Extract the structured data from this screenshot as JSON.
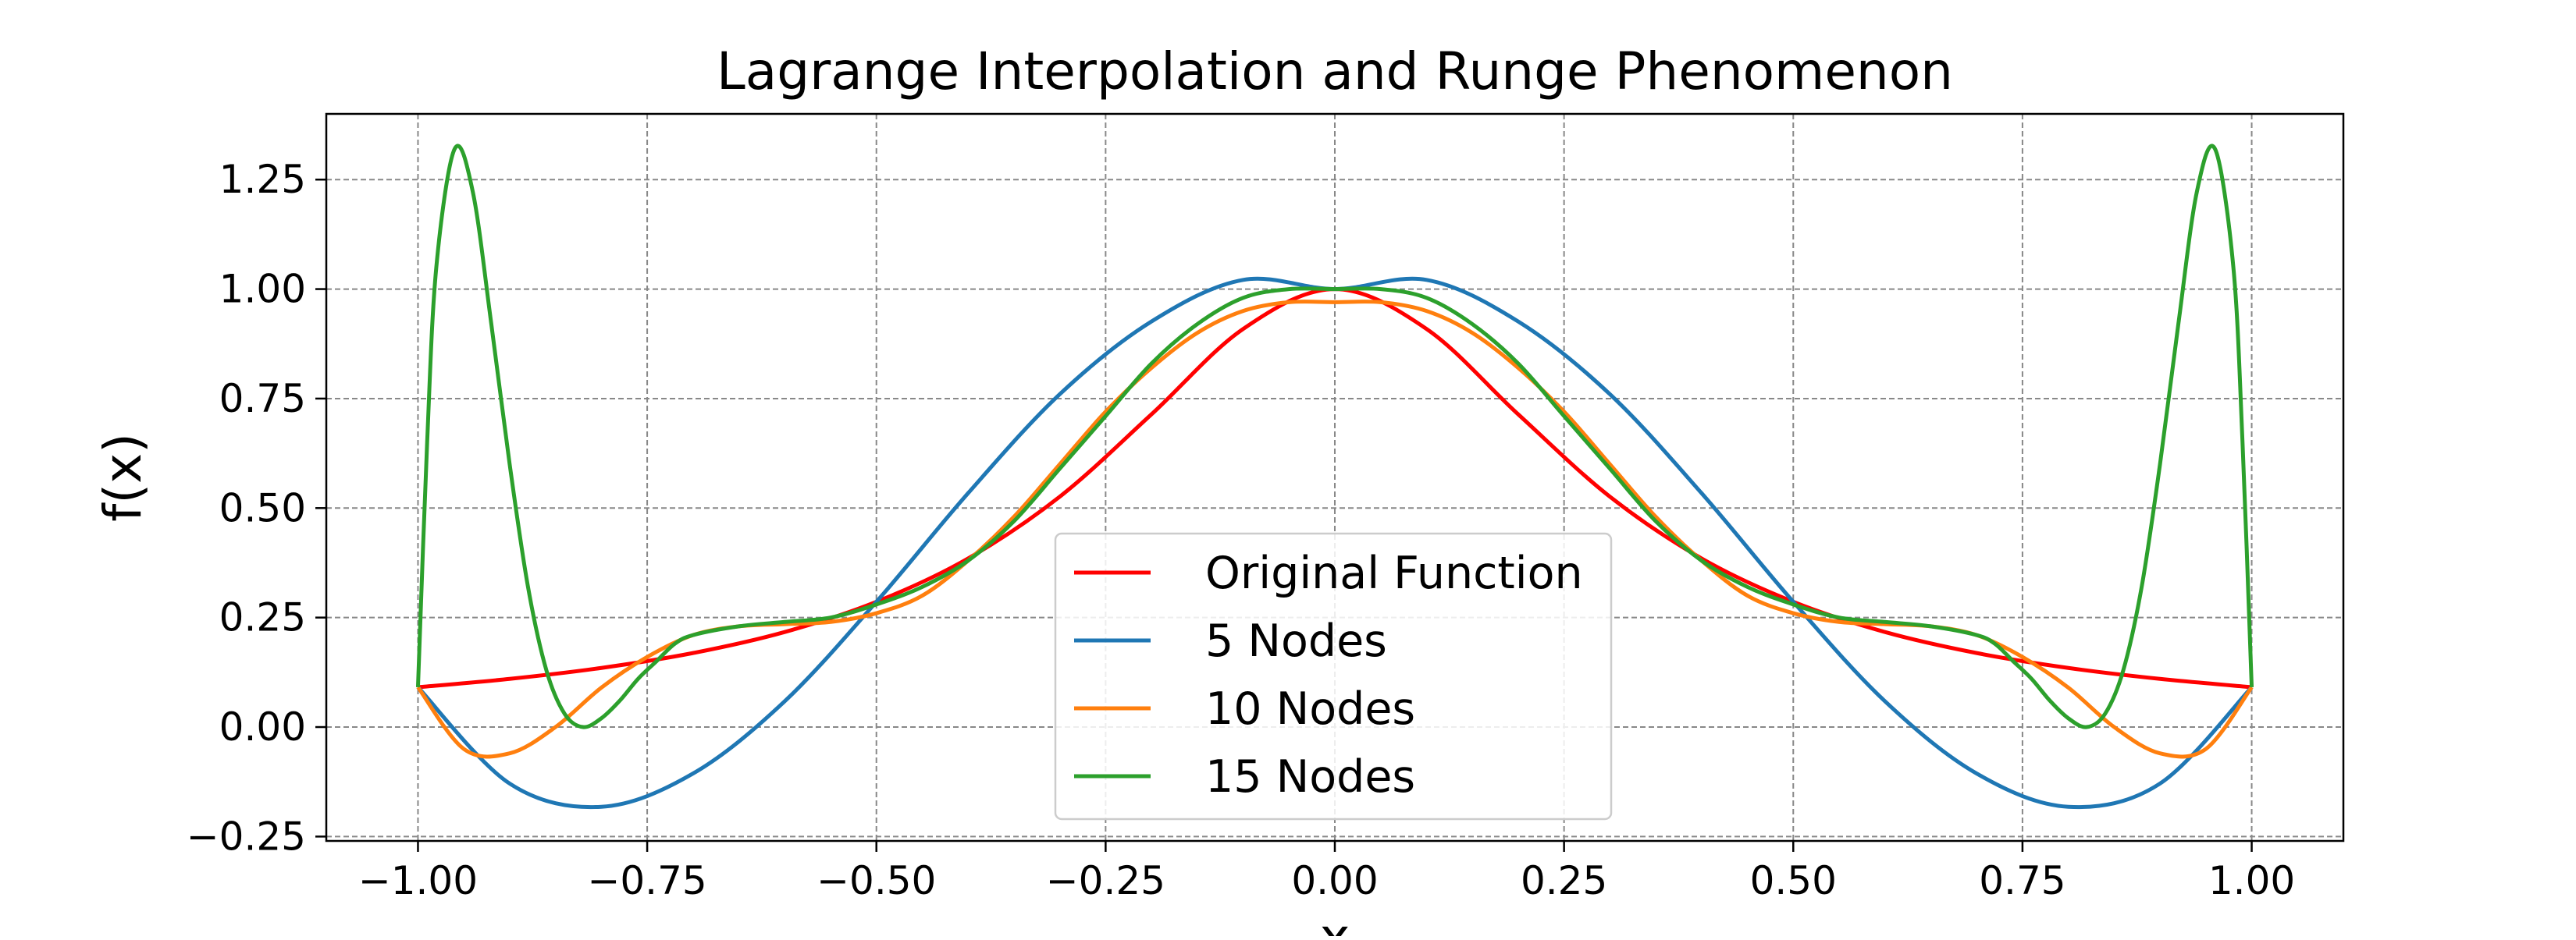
{
  "chart_data": {
    "type": "line",
    "title": "Lagrange Interpolation and Runge Phenomenon",
    "xlabel": "x",
    "ylabel": "f(x)",
    "xlim": [
      -1.1,
      1.1
    ],
    "ylim": [
      -0.26,
      1.4
    ],
    "x_ticks": [
      -1.0,
      -0.75,
      -0.5,
      -0.25,
      0.0,
      0.25,
      0.5,
      0.75,
      1.0
    ],
    "x_tick_labels": [
      "−1.00",
      "−0.75",
      "−0.50",
      "−0.25",
      "0.00",
      "0.25",
      "0.50",
      "0.75",
      "1.00"
    ],
    "y_ticks": [
      -0.25,
      0.0,
      0.25,
      0.5,
      0.75,
      1.0,
      1.25
    ],
    "y_tick_labels": [
      "−0.25",
      "0.00",
      "0.25",
      "0.50",
      "0.75",
      "1.00",
      "1.25"
    ],
    "grid": true,
    "legend_position": "lower-center",
    "series": [
      {
        "name": "Original Function",
        "color": "#ff0000",
        "x": [
          -1.0,
          -0.9,
          -0.8,
          -0.7,
          -0.6,
          -0.5,
          -0.4,
          -0.3,
          -0.2,
          -0.1,
          0.0,
          0.1,
          0.2,
          0.3,
          0.4,
          0.5,
          0.6,
          0.7,
          0.8,
          0.9,
          1.0
        ],
        "y": [
          0.091,
          0.11,
          0.135,
          0.169,
          0.217,
          0.286,
          0.385,
          0.526,
          0.714,
          0.909,
          1.0,
          0.909,
          0.714,
          0.526,
          0.385,
          0.286,
          0.217,
          0.169,
          0.135,
          0.11,
          0.091
        ]
      },
      {
        "name": "5 Nodes",
        "color": "#1f77b4",
        "x": [
          -1.0,
          -0.9,
          -0.8,
          -0.7,
          -0.6,
          -0.5,
          -0.4,
          -0.3,
          -0.2,
          -0.1,
          0.0,
          0.1,
          0.2,
          0.3,
          0.4,
          0.5,
          0.6,
          0.7,
          0.8,
          0.9,
          1.0
        ],
        "y": [
          0.091,
          -0.129,
          -0.182,
          -0.106,
          0.059,
          0.286,
          0.534,
          0.76,
          0.926,
          1.021,
          1.0,
          1.021,
          0.926,
          0.76,
          0.534,
          0.286,
          0.059,
          -0.106,
          -0.182,
          -0.129,
          0.091
        ]
      },
      {
        "name": "10 Nodes",
        "color": "#ff7f0e",
        "x": [
          -1.0,
          -0.95,
          -0.9,
          -0.85,
          -0.8,
          -0.75,
          -0.7,
          -0.65,
          -0.6,
          -0.55,
          -0.5,
          -0.45,
          -0.4,
          -0.35,
          -0.3,
          -0.25,
          -0.2,
          -0.15,
          -0.1,
          -0.05,
          0.0,
          0.05,
          0.1,
          0.15,
          0.2,
          0.25,
          0.3,
          0.35,
          0.4,
          0.45,
          0.5,
          0.55,
          0.6,
          0.65,
          0.7,
          0.75,
          0.8,
          0.85,
          0.9,
          0.95,
          1.0
        ],
        "y": [
          0.091,
          -0.05,
          -0.06,
          0.0,
          0.09,
          0.16,
          0.21,
          0.23,
          0.235,
          0.24,
          0.26,
          0.3,
          0.38,
          0.48,
          0.6,
          0.72,
          0.82,
          0.9,
          0.95,
          0.97,
          0.97,
          0.97,
          0.95,
          0.9,
          0.82,
          0.72,
          0.6,
          0.48,
          0.38,
          0.3,
          0.26,
          0.24,
          0.235,
          0.23,
          0.21,
          0.16,
          0.09,
          0.0,
          -0.06,
          -0.05,
          0.091
        ]
      },
      {
        "name": "15 Nodes",
        "color": "#2ca02c",
        "x": [
          -1.0,
          -0.99,
          -0.98,
          -0.96,
          -0.94,
          -0.92,
          -0.9,
          -0.88,
          -0.86,
          -0.84,
          -0.82,
          -0.8,
          -0.78,
          -0.76,
          -0.74,
          -0.72,
          -0.7,
          -0.65,
          -0.6,
          -0.55,
          -0.5,
          -0.45,
          -0.4,
          -0.35,
          -0.3,
          -0.25,
          -0.2,
          -0.15,
          -0.1,
          -0.05,
          0.0,
          0.05,
          0.1,
          0.15,
          0.2,
          0.25,
          0.3,
          0.35,
          0.4,
          0.45,
          0.5,
          0.55,
          0.6,
          0.65,
          0.7,
          0.72,
          0.74,
          0.76,
          0.78,
          0.8,
          0.82,
          0.84,
          0.86,
          0.88,
          0.9,
          0.92,
          0.94,
          0.96,
          0.98,
          0.99,
          1.0
        ],
        "y": [
          0.091,
          0.65,
          1.05,
          1.32,
          1.22,
          0.92,
          0.6,
          0.32,
          0.13,
          0.03,
          0.0,
          0.02,
          0.06,
          0.11,
          0.15,
          0.19,
          0.21,
          0.23,
          0.24,
          0.25,
          0.28,
          0.32,
          0.38,
          0.47,
          0.59,
          0.71,
          0.83,
          0.92,
          0.98,
          1.0,
          1.0,
          1.0,
          0.98,
          0.92,
          0.83,
          0.71,
          0.59,
          0.47,
          0.38,
          0.32,
          0.28,
          0.25,
          0.24,
          0.23,
          0.21,
          0.19,
          0.15,
          0.11,
          0.06,
          0.02,
          0.0,
          0.03,
          0.13,
          0.32,
          0.6,
          0.92,
          1.22,
          1.32,
          1.05,
          0.65,
          0.091
        ]
      }
    ]
  }
}
